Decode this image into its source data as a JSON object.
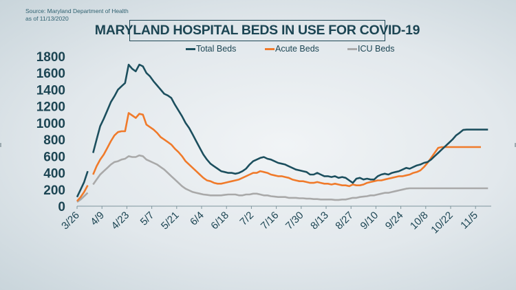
{
  "source": {
    "line1": "Source: Maryland Department of Health",
    "line2": "as of 11/13/2020"
  },
  "chart_data": {
    "type": "line",
    "title": "MARYLAND HOSPITAL BEDS IN USE FOR COVID-19",
    "xlabel": "",
    "ylabel": "",
    "ylim": [
      0,
      1800
    ],
    "yticks": [
      "0",
      "200",
      "400",
      "600",
      "800",
      "1000",
      "1200",
      "1400",
      "1600",
      "1800"
    ],
    "xticks": [
      "3/26",
      "4/9",
      "4/23",
      "5/7",
      "5/21",
      "6/4",
      "6/18",
      "7/2",
      "7/16",
      "7/30",
      "8/13",
      "8/27",
      "9/10",
      "9/24",
      "10/8",
      "10/22",
      "11/5"
    ],
    "legend_position": "top-center",
    "grid": false,
    "x_unit": "days since 3/26",
    "gap_after_day": 7,
    "x": [
      0,
      2,
      4,
      6,
      7,
      9,
      11,
      13,
      15,
      17,
      19,
      21,
      23,
      25,
      27,
      29,
      31,
      33,
      35,
      37,
      39,
      41,
      43,
      45,
      47,
      49,
      51,
      53,
      55,
      57,
      59,
      61,
      63,
      65,
      67,
      69,
      71,
      73,
      75,
      77,
      79,
      81,
      83,
      85,
      87,
      89,
      91,
      93,
      95,
      97,
      99,
      101,
      103,
      105,
      107,
      109,
      111,
      113,
      115,
      117,
      119,
      121,
      123,
      125,
      127,
      129,
      131,
      133,
      135,
      137,
      139,
      141,
      143,
      145,
      147,
      149,
      151,
      153,
      155,
      157,
      159,
      161,
      163,
      165,
      167,
      169,
      171,
      173,
      175,
      177,
      179,
      181,
      183,
      185,
      187,
      189,
      191,
      193,
      195,
      197,
      199,
      201,
      203,
      205,
      207,
      209,
      211,
      213,
      215,
      217,
      219,
      221,
      223,
      225,
      227,
      229,
      231
    ],
    "series": [
      {
        "name": "Total Beds",
        "color": "#1c4f5e",
        "values": [
          110,
          200,
          290,
          420,
          500,
          640,
          800,
          960,
          1050,
          1150,
          1250,
          1320,
          1400,
          1440,
          1480,
          1700,
          1650,
          1620,
          1700,
          1680,
          1600,
          1560,
          1500,
          1450,
          1400,
          1350,
          1330,
          1300,
          1220,
          1150,
          1080,
          1000,
          940,
          860,
          780,
          700,
          620,
          560,
          510,
          480,
          450,
          420,
          410,
          400,
          400,
          390,
          400,
          420,
          450,
          500,
          540,
          560,
          580,
          590,
          570,
          560,
          540,
          520,
          510,
          500,
          480,
          460,
          440,
          430,
          420,
          410,
          380,
          380,
          400,
          380,
          360,
          360,
          350,
          360,
          340,
          350,
          340,
          310,
          280,
          330,
          340,
          320,
          330,
          320,
          320,
          360,
          380,
          390,
          380,
          400,
          410,
          420,
          440,
          460,
          450,
          470,
          490,
          500,
          520,
          530,
          560,
          600,
          640,
          680,
          720,
          760,
          800,
          850,
          880,
          916,
          920,
          920,
          920,
          920,
          920,
          920,
          920
        ],
        "icu_note": ""
      },
      {
        "name": "Acute Beds",
        "color": "#f07a2a",
        "values": [
          60,
          110,
          170,
          250,
          300,
          380,
          480,
          560,
          620,
          700,
          780,
          850,
          890,
          900,
          900,
          1120,
          1090,
          1060,
          1110,
          1100,
          980,
          950,
          920,
          880,
          830,
          800,
          770,
          740,
          690,
          650,
          600,
          540,
          500,
          460,
          420,
          380,
          340,
          310,
          300,
          280,
          270,
          270,
          280,
          290,
          300,
          310,
          320,
          340,
          360,
          380,
          400,
          400,
          420,
          410,
          400,
          380,
          370,
          360,
          360,
          350,
          340,
          320,
          310,
          300,
          300,
          290,
          280,
          280,
          290,
          280,
          270,
          270,
          260,
          270,
          260,
          250,
          250,
          240,
          260,
          250,
          250,
          260,
          280,
          290,
          300,
          310,
          310,
          320,
          330,
          340,
          350,
          360,
          360,
          370,
          380,
          400,
          410,
          430,
          470,
          520,
          580,
          640,
          700,
          710,
          710,
          710,
          710,
          710,
          710,
          710,
          710,
          710,
          710,
          710,
          710
        ],
        "icu_note": ""
      },
      {
        "name": "ICU Beds",
        "color": "#a9a9a9",
        "values": [
          50,
          80,
          120,
          160,
          200,
          260,
          320,
          380,
          420,
          460,
          500,
          530,
          540,
          560,
          570,
          600,
          590,
          590,
          610,
          600,
          560,
          540,
          520,
          500,
          470,
          440,
          400,
          360,
          320,
          280,
          240,
          210,
          190,
          170,
          160,
          150,
          140,
          135,
          130,
          130,
          130,
          130,
          135,
          140,
          140,
          140,
          130,
          130,
          140,
          140,
          150,
          150,
          140,
          130,
          130,
          120,
          115,
          110,
          110,
          110,
          100,
          100,
          100,
          95,
          95,
          90,
          90,
          85,
          85,
          80,
          80,
          80,
          80,
          75,
          75,
          80,
          80,
          90,
          100,
          100,
          110,
          115,
          120,
          130,
          130,
          140,
          150,
          160,
          160,
          170,
          180,
          190,
          200,
          210,
          215,
          215,
          215,
          215,
          215,
          215,
          215,
          215,
          215,
          215,
          215,
          215,
          215,
          215,
          215,
          215,
          215,
          215,
          215,
          215,
          215,
          215,
          215
        ]
      }
    ]
  }
}
